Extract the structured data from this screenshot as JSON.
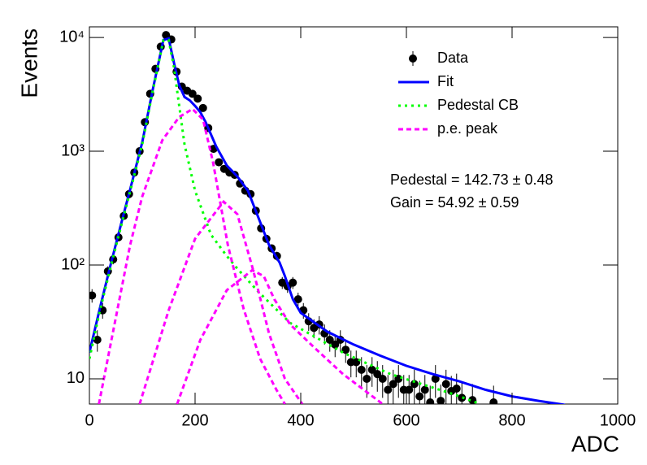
{
  "chart_data": {
    "type": "scatter",
    "log_y": true,
    "xlabel": "ADC",
    "ylabel": "Events",
    "xlim": [
      0,
      1000
    ],
    "ylim": [
      6,
      12400
    ],
    "xticks": [
      0,
      200,
      400,
      600,
      800,
      1000
    ],
    "yticks": [
      10,
      {
        "value": 100,
        "label": "10²"
      },
      {
        "value": 1000,
        "label": "10³"
      },
      {
        "value": 10000,
        "label": "10⁴"
      }
    ],
    "legend": "top-right",
    "annotations": [
      "Pedestal = 142.73 ± 0.48",
      "Gain = 54.92 ± 0.59"
    ],
    "series": [
      {
        "name": "Data",
        "color": "#000000",
        "kind": "points",
        "x": [
          5,
          15,
          25,
          35,
          45,
          55,
          65,
          75,
          85,
          95,
          105,
          115,
          125,
          135,
          145,
          155,
          165,
          175,
          185,
          195,
          205,
          215,
          225,
          235,
          245,
          255,
          265,
          275,
          285,
          295,
          305,
          315,
          325,
          335,
          345,
          355,
          365,
          375,
          385,
          395,
          405,
          415,
          425,
          435,
          445,
          455,
          465,
          475,
          485,
          495,
          505,
          515,
          525,
          535,
          545,
          555,
          565,
          575,
          585,
          595,
          605,
          615,
          625,
          635,
          645,
          655,
          665,
          675,
          685,
          695,
          705,
          725,
          765
        ],
        "values": [
          54,
          22,
          40,
          88,
          112,
          175,
          270,
          420,
          650,
          1000,
          1800,
          3200,
          5300,
          8300,
          10500,
          9600,
          5000,
          3700,
          3400,
          3200,
          2900,
          2400,
          1600,
          1050,
          800,
          700,
          650,
          620,
          520,
          450,
          420,
          300,
          210,
          170,
          140,
          120,
          70,
          65,
          70,
          50,
          40,
          32,
          28,
          30,
          25,
          22,
          20,
          22,
          18,
          14,
          14,
          12,
          10,
          12,
          11,
          10,
          8,
          9,
          10,
          8,
          8,
          9,
          7,
          8,
          6.2,
          10,
          6.4,
          9,
          7.8,
          8.2,
          6.8,
          6.5,
          6.2
        ],
        "errors": [
          7.3,
          4.7,
          6.3,
          9.4,
          10.6,
          13.2,
          16.4,
          20.5,
          25.5,
          31.6,
          42.4,
          56.6,
          72.8,
          91.1,
          102.5,
          98,
          70.7,
          60.8,
          58.3,
          56.6,
          53.9,
          49,
          40,
          32.4,
          28.3,
          26.5,
          25.5,
          24.9,
          22.8,
          21.2,
          20.5,
          17.3,
          14.5,
          13,
          11.8,
          11,
          8.4,
          8.1,
          8.4,
          7.1,
          6.3,
          5.7,
          5.3,
          5.5,
          5,
          4.7,
          4.5,
          4.7,
          4.2,
          3.7,
          3.7,
          3.5,
          3.2,
          3.5,
          3.3,
          3.2,
          2.8,
          3,
          3.2,
          2.8,
          2.8,
          3,
          2.6,
          2.8,
          2.5,
          3.2,
          2.5,
          3,
          2.8,
          2.9,
          2.6,
          2.5,
          2.5
        ]
      },
      {
        "name": "Fit",
        "color": "#0000ff",
        "kind": "line",
        "dash": "solid",
        "curves": [
          {
            "x": [
              0,
              20,
              40,
              60,
              80,
              100,
              120,
              140,
              150,
              160,
              170,
              180,
              190,
              200,
              210,
              220,
              240,
              260,
              280,
              300,
              320,
              340,
              360,
              370,
              385,
              400,
              450,
              500,
              550,
              600,
              650,
              700,
              750,
              800,
              850,
              900
            ],
            "values": [
              17,
              42,
              100,
              230,
              520,
              1200,
              3500,
              9500,
              9800,
              6000,
              3800,
              3000,
              2800,
              2500,
              2200,
              1800,
              1100,
              750,
              600,
              450,
              260,
              150,
              105,
              80,
              50,
              38,
              26,
              20,
              16,
              13,
              11,
              9.5,
              8,
              7,
              6.4,
              5.9
            ]
          }
        ]
      },
      {
        "name": "Pedestal CB",
        "color": "#00ff00",
        "kind": "line",
        "dash": "dotted",
        "curves": [
          {
            "x": [
              0,
              20,
              40,
              60,
              80,
              100,
              120,
              140,
              150,
              160,
              170,
              180,
              200,
              230,
              260,
              280,
              320,
              380,
              480,
              570,
              690,
              740
            ],
            "values": [
              15,
              40,
              95,
              220,
              500,
              1150,
              3400,
              9400,
              9500,
              5500,
              2500,
              1150,
              450,
              185,
              120,
              93,
              58,
              31,
              17,
              11,
              7.3,
              6
            ]
          }
        ]
      },
      {
        "name": "p.e. peak",
        "color": "#ff00ff",
        "kind": "line",
        "dash": "dashed",
        "curves": [
          {
            "x": [
              18,
              40,
              77,
              100,
              138,
              170,
              195,
              215,
              234,
              262,
              292,
              323,
              354,
              370
            ],
            "values": [
              6,
              20,
              150,
              400,
              1250,
              2000,
              2350,
              1900,
              800,
              150,
              41,
              15,
              8,
              6
            ]
          },
          {
            "x": [
              95,
              150,
              200,
              254,
              280,
              310,
              340,
              370,
              403
            ],
            "values": [
              6,
              40,
              170,
              360,
              280,
              90,
              25,
              10,
              6
            ]
          },
          {
            "x": [
              166,
              210,
              260,
              308,
              330,
              350,
              380,
              430,
              480,
              555
            ],
            "values": [
              6,
              22,
              60,
              90,
              80,
              50,
              30,
              18,
              11,
              6
            ]
          }
        ]
      }
    ]
  }
}
